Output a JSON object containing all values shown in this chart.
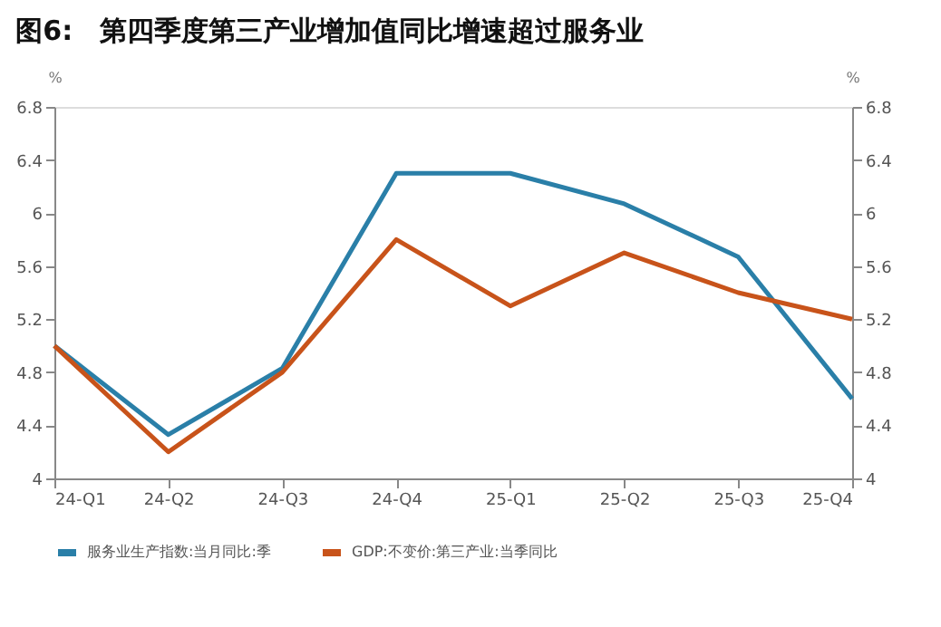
{
  "chart_data": {
    "type": "line",
    "title": "图6:　第四季度第三产业增加值同比增速超过服务业",
    "categories": [
      "24-Q1",
      "24-Q2",
      "24-Q3",
      "24-Q4",
      "25-Q1",
      "25-Q2",
      "25-Q3",
      "25-Q4"
    ],
    "series": [
      {
        "name": "服务业生产指数:当月同比:季",
        "color": "#2a7fa8",
        "values": [
          5.0,
          4.33,
          4.83,
          6.3,
          6.3,
          6.07,
          5.67,
          4.6
        ]
      },
      {
        "name": "GDP:不变价:第三产业:当季同比",
        "color": "#c8531a",
        "values": [
          5.0,
          4.2,
          4.8,
          5.8,
          5.3,
          5.7,
          5.4,
          5.2
        ]
      }
    ],
    "ylabel": "%",
    "y2label": "%",
    "ylim": [
      4,
      6.8
    ],
    "yticks": [
      4,
      4.4,
      4.8,
      5.2,
      5.6,
      6,
      6.4,
      6.8
    ],
    "y2lim": [
      4,
      6.8
    ],
    "y2ticks": [
      4,
      4.4,
      4.8,
      5.2,
      5.6,
      6,
      6.4,
      6.8
    ],
    "legend": "bottom"
  }
}
